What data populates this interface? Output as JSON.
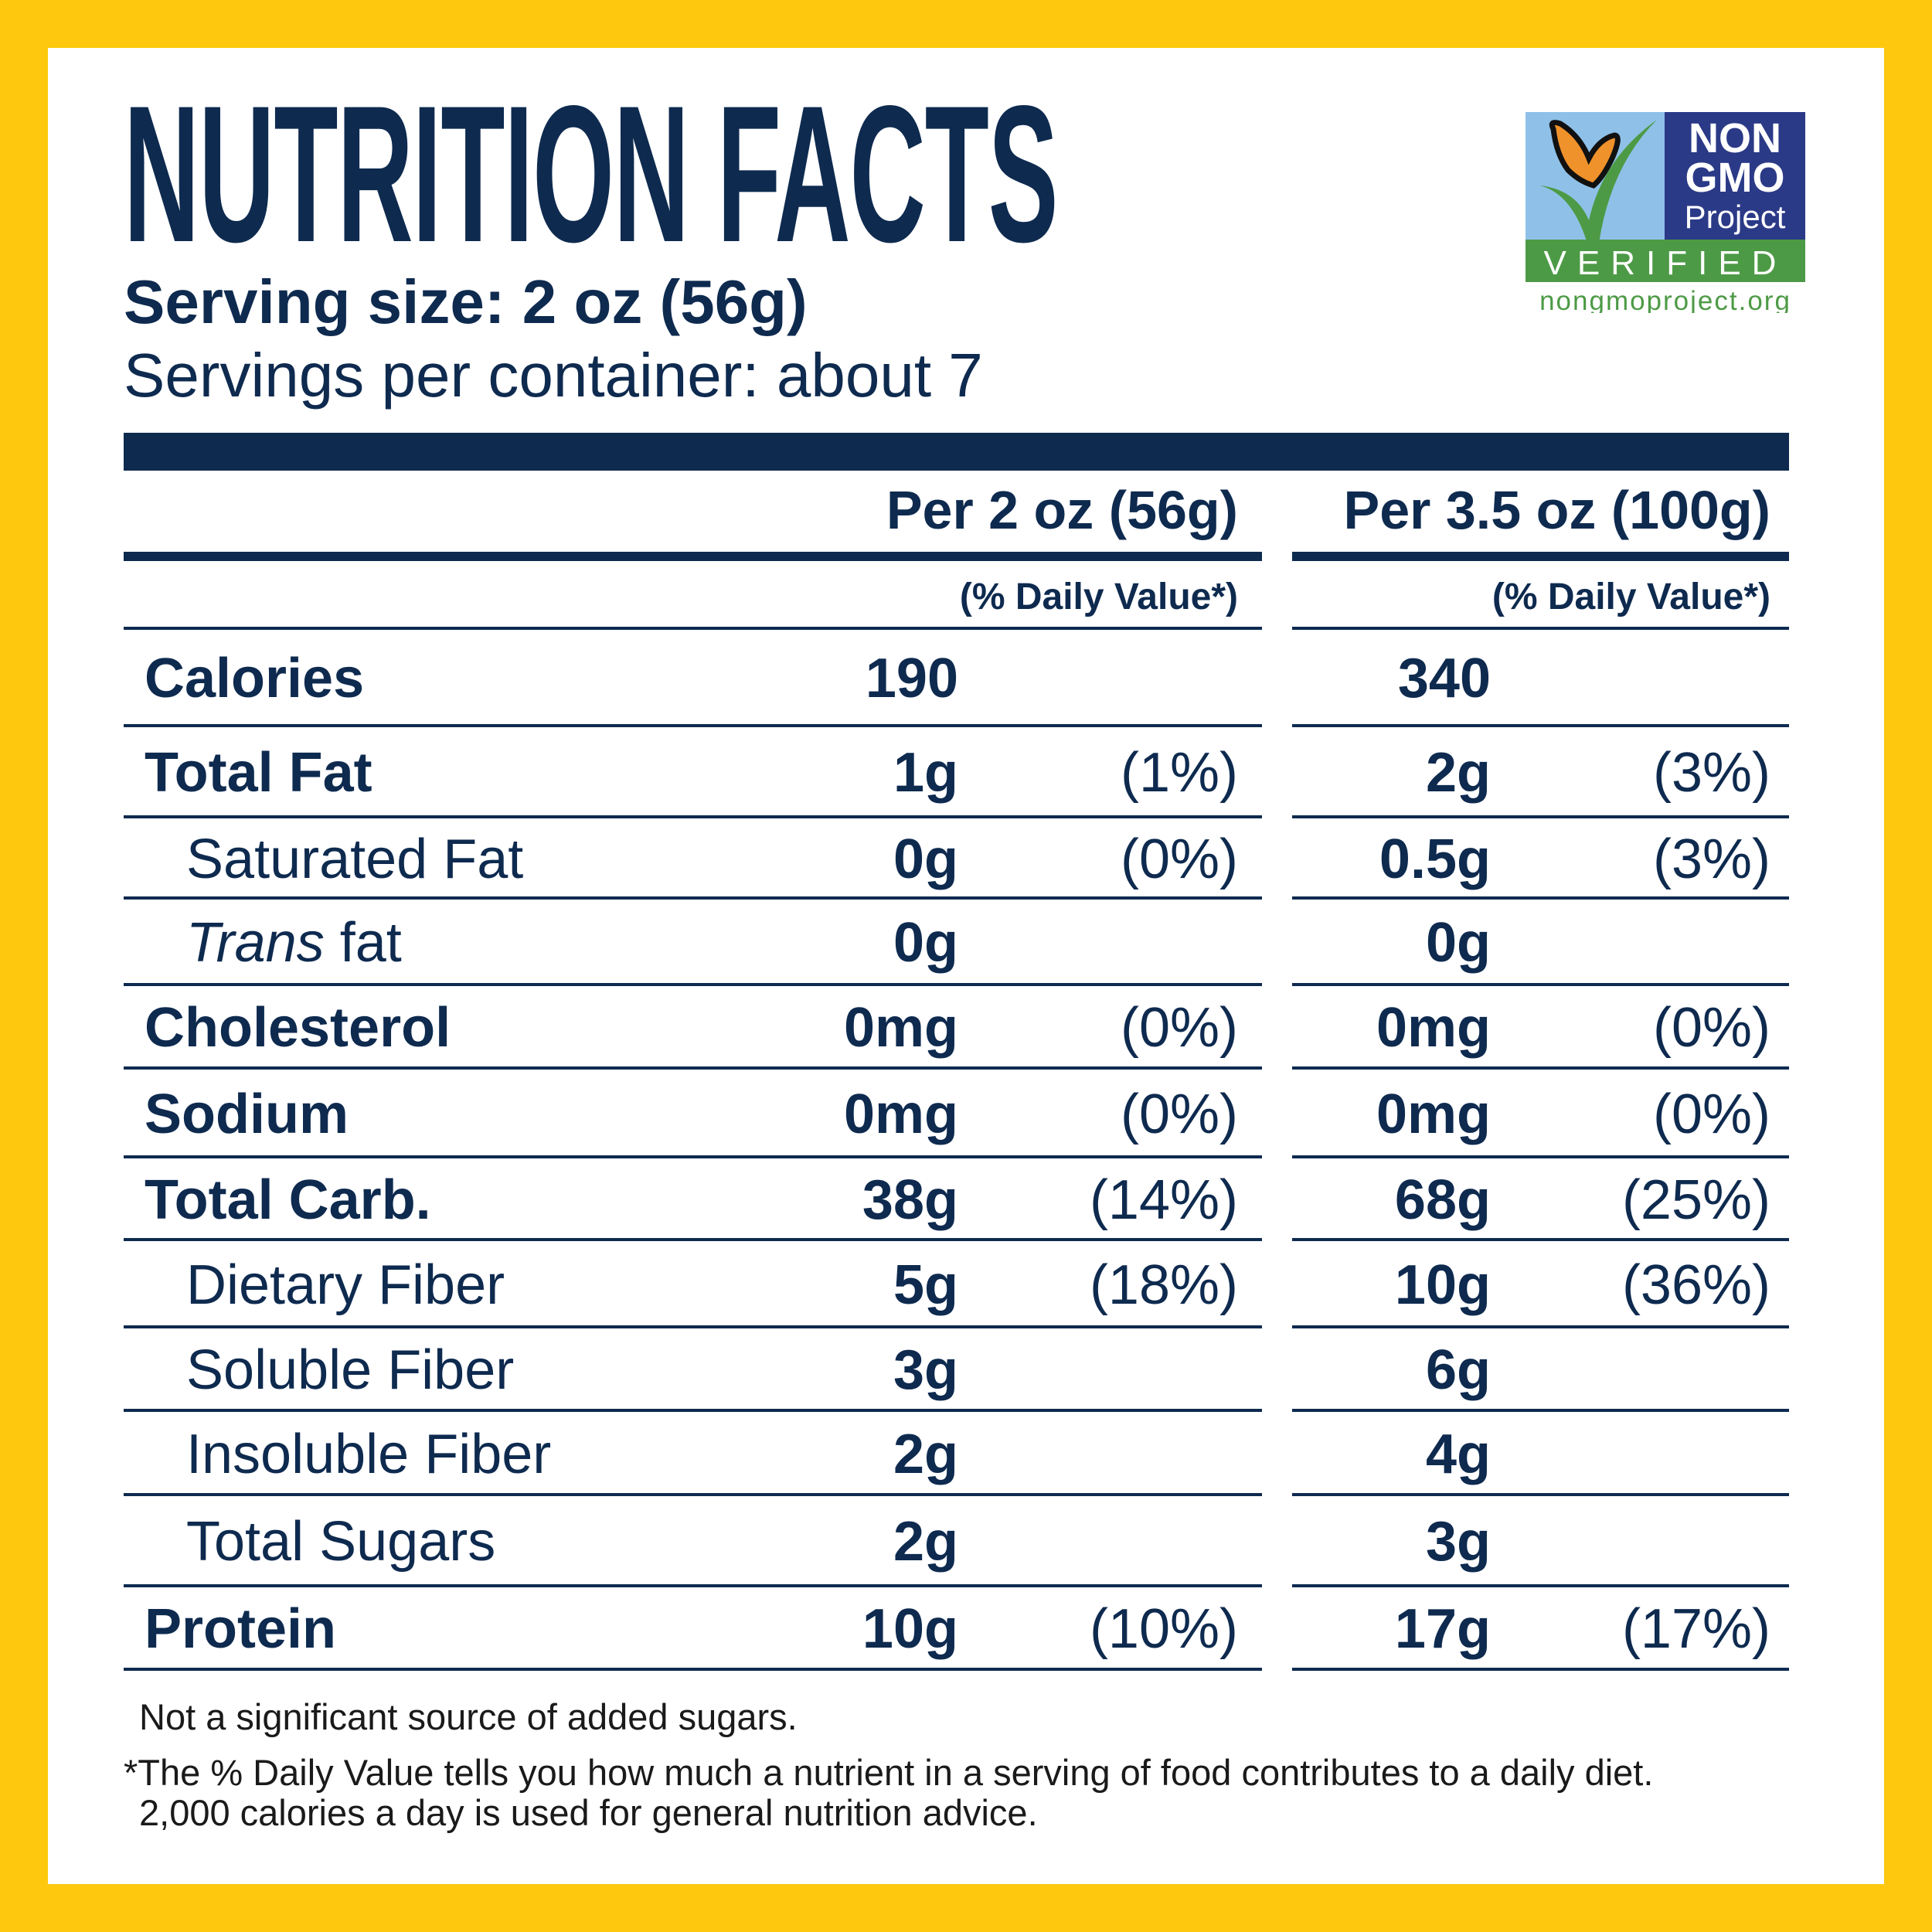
{
  "title": "NUTRITION FACTS",
  "serving_size": "Serving size: 2 oz (56g)",
  "servings_per_container": "Servings per container: about 7",
  "columns": [
    {
      "header": "Per 2 oz (56g)",
      "dv_header": "(% Daily Value*)"
    },
    {
      "header": "Per 3.5 oz (100g)",
      "dv_header": "(% Daily Value*)"
    }
  ],
  "rows": [
    {
      "label": "Calories",
      "bold": true,
      "indent": false,
      "c1": "190",
      "d1": "",
      "c2": "340",
      "d2": ""
    },
    {
      "label": "Total Fat",
      "bold": true,
      "indent": false,
      "c1": "1g",
      "d1": "(1%)",
      "c2": "2g",
      "d2": "(3%)"
    },
    {
      "label": "Saturated Fat",
      "bold": false,
      "indent": true,
      "c1": "0g",
      "d1": "(0%)",
      "c2": "0.5g",
      "d2": "(3%)"
    },
    {
      "label_italic": "Trans",
      "label": " fat",
      "bold": false,
      "indent": true,
      "c1": "0g",
      "d1": "",
      "c2": "0g",
      "d2": ""
    },
    {
      "label": "Cholesterol",
      "bold": true,
      "indent": false,
      "c1": "0mg",
      "d1": "(0%)",
      "c2": "0mg",
      "d2": "(0%)"
    },
    {
      "label": "Sodium",
      "bold": true,
      "indent": false,
      "c1": "0mg",
      "d1": "(0%)",
      "c2": "0mg",
      "d2": "(0%)"
    },
    {
      "label": "Total Carb.",
      "bold": true,
      "indent": false,
      "c1": "38g",
      "d1": "(14%)",
      "c2": "68g",
      "d2": "(25%)"
    },
    {
      "label": "Dietary Fiber",
      "bold": false,
      "indent": true,
      "c1": "5g",
      "d1": "(18%)",
      "c2": "10g",
      "d2": "(36%)"
    },
    {
      "label": "Soluble Fiber",
      "bold": false,
      "indent": true,
      "c1": "3g",
      "d1": "",
      "c2": "6g",
      "d2": ""
    },
    {
      "label": "Insoluble Fiber",
      "bold": false,
      "indent": true,
      "c1": "2g",
      "d1": "",
      "c2": "4g",
      "d2": ""
    },
    {
      "label": "Total Sugars",
      "bold": false,
      "indent": true,
      "c1": "2g",
      "d1": "",
      "c2": "3g",
      "d2": ""
    },
    {
      "label": "Protein",
      "bold": true,
      "indent": false,
      "c1": "10g",
      "d1": "(10%)",
      "c2": "17g",
      "d2": "(17%)"
    }
  ],
  "footnotes": {
    "added_sugars": "Not a significant source of added sugars.",
    "dv_line1": "*The % Daily Value tells you how much a nutrient in a serving of food contributes to a daily diet.",
    "dv_line2": "2,000 calories a day is used for general nutrition advice."
  },
  "logo": {
    "line1": "NON",
    "line2": "GMO",
    "line3": "Project",
    "verified": "VERIFIED",
    "url": "nongmoproject.org"
  },
  "colors": {
    "text": "#0e2a4f",
    "border": "#fdc80d",
    "logo_navy": "#2b3a87",
    "logo_sky": "#8fc1e8",
    "logo_green": "#4d9a46",
    "butterfly": "#f0922b"
  }
}
